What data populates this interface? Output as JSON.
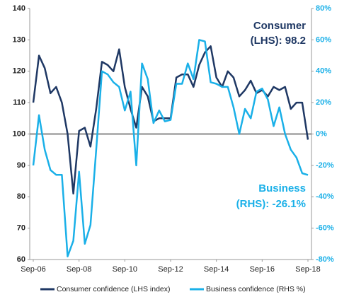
{
  "chart_data": {
    "type": "line",
    "categories": [
      "Sep-06",
      null,
      null,
      null,
      null,
      null,
      null,
      null,
      "Sep-08",
      null,
      null,
      null,
      null,
      null,
      null,
      null,
      "Sep-10",
      null,
      null,
      null,
      null,
      null,
      null,
      null,
      "Sep-12",
      null,
      null,
      null,
      null,
      null,
      null,
      null,
      "Sep-14",
      null,
      null,
      null,
      null,
      null,
      null,
      null,
      "Sep-16",
      null,
      null,
      null,
      null,
      null,
      null,
      null,
      "Sep-18"
    ],
    "series": [
      {
        "name": "Consumer confidence (LHS index)",
        "color": "#1f3864",
        "axis": "y",
        "values": [
          110,
          125,
          121,
          113,
          115,
          110,
          100,
          81,
          101,
          102,
          96,
          108,
          123,
          122,
          120,
          127,
          115,
          108,
          102,
          115,
          112,
          104,
          105,
          105,
          105,
          118,
          119,
          119,
          115,
          122,
          126,
          128,
          118,
          115,
          120,
          118,
          112,
          114,
          117,
          113,
          114,
          112,
          115,
          114,
          115,
          108,
          110,
          110,
          98.2
        ]
      },
      {
        "name": "Business confidence (RHS %)",
        "color": "#1ab0e8",
        "axis": "y2",
        "values": [
          -20,
          12,
          -10,
          -23,
          -26,
          -26,
          -78,
          -68,
          -24,
          -70,
          -58,
          -10,
          40,
          38,
          33,
          30,
          15,
          27,
          -20,
          45,
          35,
          7,
          15,
          8,
          9,
          32,
          32,
          45,
          35,
          60,
          59,
          33,
          32,
          30,
          30,
          17,
          0,
          16,
          10,
          27,
          29,
          22,
          5,
          17,
          0,
          -10,
          -15,
          -25,
          -26.1
        ]
      }
    ],
    "ylim": [
      60,
      140
    ],
    "yticks": [
      60,
      70,
      80,
      90,
      100,
      110,
      120,
      130,
      140
    ],
    "y2lim": [
      -80,
      80
    ],
    "y2ticks": [
      {
        "value": -80,
        "label": "-80%"
      },
      {
        "value": -60,
        "label": "-60%"
      },
      {
        "value": -40,
        "label": "-40%"
      },
      {
        "value": -20,
        "label": "-20%"
      },
      {
        "value": 0,
        "label": "0%"
      },
      {
        "value": 20,
        "label": "20%"
      },
      {
        "value": 40,
        "label": "40%"
      },
      {
        "value": 60,
        "label": "60%"
      },
      {
        "value": 80,
        "label": "80%"
      }
    ],
    "reference_line": 100,
    "annotations": [
      {
        "lines": [
          "Consumer",
          "(LHS): 98.2"
        ],
        "color": "#1f3864"
      },
      {
        "lines": [
          "Business",
          "(RHS): -26.1%"
        ],
        "color": "#1ab0e8"
      }
    ],
    "legend": "bottom"
  }
}
